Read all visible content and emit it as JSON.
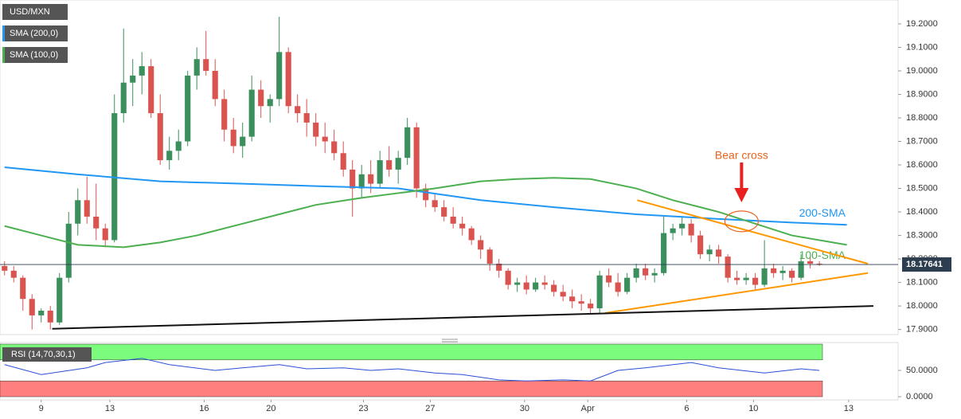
{
  "chart_data": [
    {
      "type": "candlestick",
      "legend": [
        "USD/MXN",
        "SMA (200,0)",
        "SMA (100,0)"
      ],
      "legend_colors": [
        "#555555",
        "#2196f3",
        "#4caf50"
      ],
      "up_color": "#3a8f5c",
      "down_color": "#d9534f",
      "ohlc": [
        [
          18.17,
          18.19,
          18.13,
          18.15
        ],
        [
          18.15,
          18.17,
          18.1,
          18.12
        ],
        [
          18.12,
          18.13,
          17.98,
          18.03
        ],
        [
          18.03,
          18.05,
          17.9,
          17.96
        ],
        [
          17.96,
          17.99,
          17.93,
          17.98
        ],
        [
          17.98,
          18.0,
          17.9,
          17.93
        ],
        [
          17.93,
          18.14,
          17.92,
          18.12
        ],
        [
          18.12,
          18.4,
          18.1,
          18.35
        ],
        [
          18.35,
          18.5,
          18.3,
          18.45
        ],
        [
          18.45,
          18.55,
          18.35,
          18.38
        ],
        [
          18.38,
          18.52,
          18.28,
          18.33
        ],
        [
          18.33,
          18.35,
          18.25,
          18.28
        ],
        [
          18.28,
          18.9,
          18.27,
          18.82
        ],
        [
          18.82,
          19.18,
          18.78,
          18.95
        ],
        [
          18.95,
          19.05,
          18.85,
          18.98
        ],
        [
          18.98,
          19.08,
          18.9,
          19.02
        ],
        [
          19.02,
          19.05,
          18.8,
          18.82
        ],
        [
          18.82,
          18.9,
          18.6,
          18.62
        ],
        [
          18.62,
          18.72,
          18.58,
          18.66
        ],
        [
          18.66,
          18.75,
          18.62,
          18.7
        ],
        [
          18.7,
          19.0,
          18.68,
          18.98
        ],
        [
          18.98,
          19.1,
          18.92,
          19.05
        ],
        [
          19.05,
          19.17,
          18.98,
          19.0
        ],
        [
          19.0,
          19.05,
          18.85,
          18.88
        ],
        [
          18.88,
          18.92,
          18.7,
          18.75
        ],
        [
          18.75,
          18.8,
          18.65,
          18.68
        ],
        [
          18.68,
          18.78,
          18.63,
          18.72
        ],
        [
          18.72,
          18.98,
          18.7,
          18.92
        ],
        [
          18.92,
          18.96,
          18.8,
          18.85
        ],
        [
          18.85,
          18.9,
          18.78,
          18.88
        ],
        [
          18.88,
          19.23,
          18.85,
          19.08
        ],
        [
          19.08,
          19.1,
          18.82,
          18.85
        ],
        [
          18.85,
          18.9,
          18.78,
          18.82
        ],
        [
          18.82,
          18.88,
          18.72,
          18.78
        ],
        [
          18.78,
          18.82,
          18.68,
          18.72
        ],
        [
          18.72,
          18.78,
          18.65,
          18.7
        ],
        [
          18.7,
          18.75,
          18.62,
          18.65
        ],
        [
          18.65,
          18.7,
          18.55,
          18.58
        ],
        [
          18.58,
          18.62,
          18.38,
          18.5
        ],
        [
          18.5,
          18.6,
          18.46,
          18.56
        ],
        [
          18.56,
          18.62,
          18.48,
          18.52
        ],
        [
          18.52,
          18.66,
          18.5,
          18.62
        ],
        [
          18.62,
          18.68,
          18.55,
          18.58
        ],
        [
          18.58,
          18.66,
          18.52,
          18.63
        ],
        [
          18.63,
          18.8,
          18.6,
          18.76
        ],
        [
          18.76,
          18.78,
          18.46,
          18.5
        ],
        [
          18.5,
          18.52,
          18.42,
          18.45
        ],
        [
          18.45,
          18.48,
          18.4,
          18.42
        ],
        [
          18.42,
          18.45,
          18.36,
          18.38
        ],
        [
          18.38,
          18.42,
          18.33,
          18.35
        ],
        [
          18.35,
          18.38,
          18.3,
          18.33
        ],
        [
          18.33,
          18.34,
          18.26,
          18.28
        ],
        [
          18.28,
          18.3,
          18.2,
          18.24
        ],
        [
          18.24,
          18.25,
          18.15,
          18.18
        ],
        [
          18.18,
          18.2,
          18.12,
          18.15
        ],
        [
          18.15,
          18.16,
          18.07,
          18.09
        ],
        [
          18.09,
          18.12,
          18.06,
          18.1
        ],
        [
          18.1,
          18.13,
          18.05,
          18.07
        ],
        [
          18.07,
          18.12,
          18.06,
          18.1
        ],
        [
          18.1,
          18.13,
          18.07,
          18.09
        ],
        [
          18.09,
          18.11,
          18.04,
          18.06
        ],
        [
          18.06,
          18.09,
          18.02,
          18.04
        ],
        [
          18.04,
          18.07,
          17.99,
          18.02
        ],
        [
          18.02,
          18.05,
          17.98,
          18.01
        ],
        [
          18.01,
          18.03,
          17.97,
          17.99
        ],
        [
          17.99,
          18.15,
          17.97,
          18.13
        ],
        [
          18.13,
          18.16,
          18.08,
          18.1
        ],
        [
          18.1,
          18.14,
          18.04,
          18.06
        ],
        [
          18.06,
          18.14,
          18.05,
          18.12
        ],
        [
          18.12,
          18.18,
          18.1,
          18.16
        ],
        [
          18.16,
          18.18,
          18.11,
          18.13
        ],
        [
          18.13,
          18.16,
          18.1,
          18.14
        ],
        [
          18.14,
          18.38,
          18.13,
          18.31
        ],
        [
          18.31,
          18.35,
          18.28,
          18.33
        ],
        [
          18.33,
          18.38,
          18.3,
          18.35
        ],
        [
          18.35,
          18.37,
          18.27,
          18.3
        ],
        [
          18.3,
          18.32,
          18.2,
          18.22
        ],
        [
          18.22,
          18.26,
          18.19,
          18.24
        ],
        [
          18.24,
          18.26,
          18.18,
          18.21
        ],
        [
          18.21,
          18.22,
          18.1,
          18.12
        ],
        [
          18.12,
          18.15,
          18.09,
          18.11
        ],
        [
          18.11,
          18.14,
          18.09,
          18.12
        ],
        [
          18.12,
          18.14,
          18.07,
          18.09
        ],
        [
          18.09,
          18.28,
          18.08,
          18.16
        ],
        [
          18.16,
          18.18,
          18.12,
          18.14
        ],
        [
          18.14,
          18.17,
          18.11,
          18.15
        ],
        [
          18.15,
          18.16,
          18.1,
          18.12
        ],
        [
          18.12,
          18.22,
          18.11,
          18.19
        ],
        [
          18.19,
          18.21,
          18.16,
          18.18
        ],
        [
          18.18,
          18.19,
          18.17,
          18.17641
        ]
      ],
      "series": [
        {
          "name": "200-SMA",
          "color": "#2196f3",
          "x": [
            0,
            8,
            17,
            26,
            34,
            43,
            52,
            60,
            69,
            78,
            86,
            92
          ],
          "values": [
            18.59,
            18.56,
            18.53,
            18.52,
            18.51,
            18.5,
            18.45,
            18.42,
            18.39,
            18.37,
            18.355,
            18.345
          ]
        },
        {
          "name": "100-SMA",
          "color": "#4caf50",
          "x": [
            0,
            4,
            8,
            13,
            17,
            21,
            26,
            30,
            34,
            39,
            43,
            47,
            52,
            56,
            60,
            64,
            69,
            73,
            78,
            82,
            86,
            92
          ],
          "values": [
            18.34,
            18.3,
            18.26,
            18.25,
            18.27,
            18.3,
            18.35,
            18.39,
            18.43,
            18.46,
            18.48,
            18.5,
            18.53,
            18.54,
            18.545,
            18.54,
            18.5,
            18.45,
            18.4,
            18.35,
            18.3,
            18.26
          ]
        }
      ],
      "trendlines": [
        {
          "color": "#ff9800",
          "x": [
            69.1,
            94.3
          ],
          "values": [
            18.45,
            18.18
          ]
        },
        {
          "color": "#ff9800",
          "x": [
            65.6,
            94.3
          ],
          "values": [
            17.97,
            18.14
          ]
        },
        {
          "color": "#111111",
          "x": [
            5.2,
            94.9
          ],
          "values": [
            17.903,
            18.0
          ]
        }
      ],
      "annotation": "Bear cross",
      "annotation_color": "#e8641e",
      "current_price": 18.17641,
      "xlim": [
        -0.5,
        97.6
      ],
      "ylim": [
        17.8784,
        19.3014
      ],
      "yticks": [
        {
          "value": 17.9,
          "label": "17.9000"
        },
        {
          "value": 18.0,
          "label": "18.0000"
        },
        {
          "value": 18.1,
          "label": "18.1000"
        },
        {
          "value": 18.2,
          "label": "18.2000"
        },
        {
          "value": 18.3,
          "label": "18.3000"
        },
        {
          "value": 18.4,
          "label": "18.4000"
        },
        {
          "value": 18.5,
          "label": "18.5000"
        },
        {
          "value": 18.6,
          "label": "18.6000"
        },
        {
          "value": 18.7,
          "label": "18.7000"
        },
        {
          "value": 18.8,
          "label": "18.8000"
        },
        {
          "value": 18.9,
          "label": "18.9000"
        },
        {
          "value": 19.0,
          "label": "19.0000"
        },
        {
          "value": 19.1,
          "label": "19.1000"
        },
        {
          "value": 19.2,
          "label": "19.2000"
        }
      ]
    },
    {
      "type": "line",
      "title": "RSI (14,70,30,1)",
      "color": "#2a4fd6",
      "x": [
        0,
        4,
        9,
        11,
        15,
        18,
        23,
        26,
        30,
        33,
        37,
        40,
        43,
        47,
        50,
        54,
        57,
        61,
        64,
        67,
        70,
        75,
        78,
        83,
        87,
        89
      ],
      "values": [
        61,
        42,
        55,
        65,
        73,
        61,
        50,
        55,
        61,
        53,
        55,
        50,
        53,
        45,
        42,
        32,
        30,
        32,
        30,
        50,
        55,
        65,
        55,
        45,
        53,
        50
      ],
      "bands": [
        {
          "from": 70,
          "to": 100,
          "color": "#7cfc7c"
        },
        {
          "from": 0,
          "to": 30,
          "color": "#ff7f7f"
        }
      ],
      "ylim": [
        0,
        100
      ],
      "yticks": [
        {
          "value": 50,
          "label": "50.0000"
        },
        {
          "value": 0,
          "label": "0.0000"
        }
      ],
      "xticks": [
        {
          "value": 4.0,
          "label": "9"
        },
        {
          "value": 11.5,
          "label": "13"
        },
        {
          "value": 21.8,
          "label": "16"
        },
        {
          "value": 29.1,
          "label": "20"
        },
        {
          "value": 39.2,
          "label": "23"
        },
        {
          "value": 46.5,
          "label": "27"
        },
        {
          "value": 56.8,
          "label": "30"
        },
        {
          "value": 63.7,
          "label": "Apr"
        },
        {
          "value": 74.5,
          "label": "6"
        },
        {
          "value": 81.8,
          "label": "10"
        },
        {
          "value": 92.2,
          "label": "13"
        }
      ]
    }
  ]
}
